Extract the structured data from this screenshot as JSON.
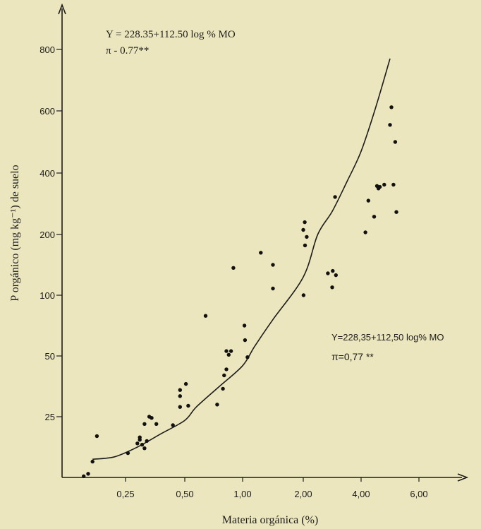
{
  "chart_data": {
    "type": "scatter",
    "xlabel": "Materia orgánica (%)",
    "ylabel": "P orgánico (mg kg⁻¹) de suelo",
    "x_ticks": [
      "0,25",
      "0,50",
      "1,00",
      "2,00",
      "4,00",
      "6,00"
    ],
    "y_ticks": [
      "25",
      "50",
      "100",
      "200",
      "400",
      "600",
      "800"
    ],
    "annotation_top": {
      "equation": "Y = 228.35+112.50 log % MO",
      "stat": "π - 0.77**"
    },
    "annotation_right": {
      "equation": "Y=228,35+112,50 log% MO",
      "stat": "π=0,77 **"
    },
    "curve": [
      [
        0.1,
        7.5
      ],
      [
        0.2,
        8.5
      ],
      [
        0.3,
        12.5
      ],
      [
        0.4,
        18
      ],
      [
        0.5,
        23.5
      ],
      [
        0.6,
        29
      ],
      [
        0.8,
        37.5
      ],
      [
        1.0,
        46
      ],
      [
        1.2,
        58
      ],
      [
        1.5,
        80
      ],
      [
        2.0,
        130
      ],
      [
        2.5,
        200
      ],
      [
        3.0,
        275
      ],
      [
        3.5,
        370
      ],
      [
        4.0,
        470
      ],
      [
        4.5,
        610
      ],
      [
        5.0,
        770
      ]
    ],
    "points": [
      [
        0.06,
        0.5
      ],
      [
        0.08,
        1.5
      ],
      [
        0.1,
        6.5
      ],
      [
        0.12,
        17
      ],
      [
        0.26,
        10
      ],
      [
        0.3,
        14
      ],
      [
        0.31,
        15.5
      ],
      [
        0.31,
        16.5
      ],
      [
        0.32,
        13.5
      ],
      [
        0.33,
        12
      ],
      [
        0.33,
        22
      ],
      [
        0.34,
        15
      ],
      [
        0.35,
        25
      ],
      [
        0.36,
        24.5
      ],
      [
        0.38,
        22
      ],
      [
        0.45,
        21.5
      ],
      [
        0.48,
        29
      ],
      [
        0.48,
        33.5
      ],
      [
        0.48,
        36
      ],
      [
        0.51,
        38.5
      ],
      [
        0.53,
        29.5
      ],
      [
        0.68,
        83
      ],
      [
        0.78,
        30
      ],
      [
        0.83,
        36.5
      ],
      [
        0.84,
        42
      ],
      [
        0.86,
        44.5
      ],
      [
        0.86,
        54
      ],
      [
        0.88,
        51
      ],
      [
        0.9,
        54
      ],
      [
        0.92,
        145
      ],
      [
        1.03,
        75
      ],
      [
        1.04,
        63
      ],
      [
        1.08,
        49.5
      ],
      [
        1.3,
        170
      ],
      [
        1.5,
        150
      ],
      [
        1.5,
        111
      ],
      [
        2.0,
        215
      ],
      [
        2.01,
        100
      ],
      [
        2.05,
        240
      ],
      [
        2.06,
        182
      ],
      [
        2.12,
        196
      ],
      [
        2.85,
        136
      ],
      [
        3.0,
        113
      ],
      [
        3.02,
        140
      ],
      [
        3.1,
        322
      ],
      [
        3.13,
        133
      ],
      [
        4.15,
        207
      ],
      [
        4.25,
        310
      ],
      [
        4.45,
        258
      ],
      [
        4.55,
        358
      ],
      [
        4.6,
        350
      ],
      [
        4.65,
        355
      ],
      [
        4.8,
        362
      ],
      [
        5.0,
        555
      ],
      [
        5.05,
        612
      ],
      [
        5.12,
        362
      ],
      [
        5.18,
        500
      ],
      [
        5.22,
        273
      ]
    ]
  }
}
